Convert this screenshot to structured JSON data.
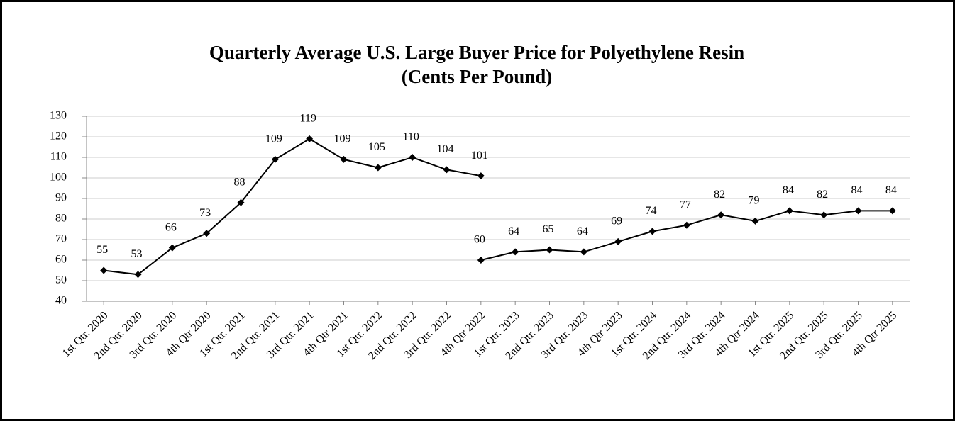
{
  "chart_data": {
    "type": "line",
    "title": [
      "Quarterly Average U.S. Large Buyer Price for Polyethylene Resin",
      "(Cents Per Pound)"
    ],
    "categories": [
      "1st Qtr. 2020",
      "2nd Qtr. 2020",
      "3rd Qtr. 2020",
      "4th Qtr 2020",
      "1st Qtr. 2021",
      "2nd Qtr. 2021",
      "3rd Qtr. 2021",
      "4th Qtr 2021",
      "1st Qtr. 2022",
      "2nd Qtr. 2022",
      "3rd Qtr. 2022",
      "4th Qtr 2022",
      "1st Qtr. 2023",
      "2nd Qtr. 2023",
      "3rd Qtr. 2023",
      "4th Qtr 2023",
      "1st Qtr. 2024",
      "2nd Qtr. 2024",
      "3rd Qtr. 2024",
      "4th Qtr 2024",
      "1st Qtr. 2025",
      "2nd Qtr. 2025",
      "3rd Qtr. 2025",
      "4th Qtr 2025"
    ],
    "series": [
      {
        "color": "#000000",
        "values": [
          55,
          53,
          66,
          73,
          88,
          109,
          119,
          109,
          105,
          110,
          104,
          101,
          null,
          null,
          null,
          null,
          null,
          null,
          null,
          null,
          null,
          null,
          null,
          null
        ]
      },
      {
        "color": "#000000",
        "values": [
          null,
          null,
          null,
          null,
          null,
          null,
          null,
          null,
          null,
          null,
          null,
          60,
          64,
          65,
          64,
          69,
          74,
          77,
          82,
          79,
          84,
          82,
          84,
          84
        ]
      }
    ],
    "ylim": [
      40,
      130
    ],
    "yticks": [
      40,
      50,
      60,
      70,
      80,
      90,
      100,
      110,
      120,
      130
    ],
    "grid": true
  }
}
